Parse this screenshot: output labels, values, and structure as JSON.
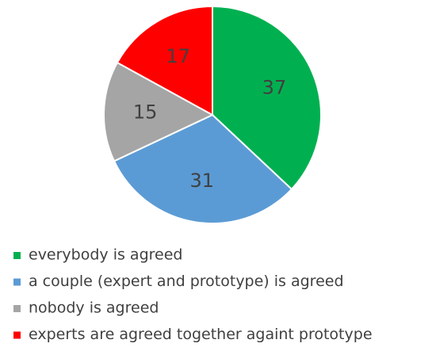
{
  "chart_data": {
    "type": "pie",
    "categories": [
      "everybody is agreed",
      "a couple (expert and prototype) is agreed",
      "nobody is agreed",
      "experts are agreed together againt prototype"
    ],
    "values": [
      37,
      31,
      15,
      17
    ],
    "colors": [
      "#00b050",
      "#5b9bd5",
      "#a5a5a5",
      "#ff0000"
    ]
  }
}
